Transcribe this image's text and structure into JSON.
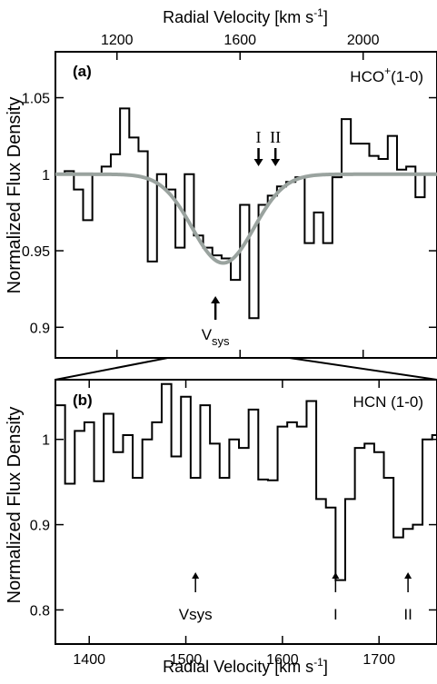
{
  "chart_data": [
    {
      "type": "line",
      "panel_label": "(a)",
      "annotation": "HCO",
      "annotation_sup": "+",
      "annotation_suffix": "(1-0)",
      "xlabel": "Radial Velocity [km s",
      "xlabel_sup": "-1",
      "xlabel_end": "]",
      "ylabel": "Normalized Flux Density",
      "xticks": [
        "1200",
        "1600",
        "2000"
      ],
      "yticks": [
        "0.9",
        "0.95",
        "1",
        "1.05"
      ],
      "xlim": [
        1000,
        2240
      ],
      "ylim": [
        0.88,
        1.08
      ],
      "x_axis_position": "top",
      "series": [
        {
          "style": "step",
          "color": "#000000",
          "x": [
            1000,
            1030,
            1060,
            1090,
            1120,
            1150,
            1180,
            1210,
            1240,
            1270,
            1300,
            1330,
            1360,
            1390,
            1420,
            1450,
            1480,
            1510,
            1540,
            1570,
            1600,
            1630,
            1660,
            1690,
            1720,
            1750,
            1780,
            1810,
            1840,
            1870,
            1900,
            1930,
            1960,
            1990,
            2020,
            2050,
            2080,
            2110,
            2140,
            2170,
            2200,
            2230
          ],
          "y": [
            1.0,
            1.002,
            0.99,
            0.97,
            1.0,
            1.005,
            1.013,
            1.043,
            1.024,
            1.015,
            0.943,
            1.0,
            0.99,
            0.952,
            1.0,
            0.96,
            0.952,
            0.947,
            0.945,
            0.931,
            0.98,
            0.906,
            0.98,
            0.986,
            0.992,
            0.995,
            0.998,
            0.955,
            0.975,
            0.955,
            0.998,
            1.036,
            1.02,
            1.02,
            1.012,
            1.01,
            1.025,
            1.003,
            1.005,
            0.985,
            1.0,
            1.0
          ]
        },
        {
          "style": "gaussian",
          "color": "#9aa39f",
          "baseline": 1.0,
          "depth": 0.058,
          "center": 1545,
          "sigma": 100
        }
      ],
      "arrows": [
        {
          "label": "I",
          "x": 1660,
          "direction": "down"
        },
        {
          "label": "II",
          "x": 1715,
          "direction": "down"
        },
        {
          "label": "V",
          "label_sub": "sys",
          "x": 1520,
          "direction": "up"
        }
      ]
    },
    {
      "type": "line",
      "panel_label": "(b)",
      "annotation": "HCN (1-0)",
      "xlabel": "Radial Velocity [km s",
      "xlabel_sup": "-1",
      "xlabel_end": "]",
      "ylabel": "Normalized Flux Density",
      "xticks": [
        "1400",
        "1500",
        "1600",
        "1700"
      ],
      "yticks": [
        "0.8",
        "0.9",
        "1"
      ],
      "xlim": [
        1365,
        1760
      ],
      "ylim": [
        0.76,
        1.07
      ],
      "x_axis_position": "bottom",
      "series": [
        {
          "style": "step",
          "color": "#000000",
          "x": [
            1365,
            1375,
            1385,
            1395,
            1405,
            1415,
            1425,
            1435,
            1445,
            1455,
            1465,
            1475,
            1485,
            1495,
            1505,
            1515,
            1525,
            1535,
            1545,
            1555,
            1565,
            1575,
            1585,
            1595,
            1605,
            1615,
            1625,
            1635,
            1645,
            1655,
            1665,
            1675,
            1685,
            1695,
            1705,
            1715,
            1725,
            1735,
            1745,
            1755
          ],
          "y": [
            1.04,
            0.948,
            1.01,
            1.02,
            0.951,
            1.03,
            0.985,
            1.005,
            0.955,
            1.0,
            1.02,
            1.065,
            0.98,
            1.05,
            0.955,
            1.04,
            0.995,
            0.955,
            1.0,
            0.99,
            1.035,
            0.953,
            0.952,
            1.015,
            1.02,
            1.015,
            1.045,
            0.93,
            0.92,
            0.835,
            0.93,
            0.99,
            0.995,
            0.985,
            0.955,
            0.885,
            0.895,
            0.9,
            1.0,
            1.005
          ]
        }
      ],
      "arrows": [
        {
          "label": "Vsys",
          "x": 1510,
          "direction": "up"
        },
        {
          "label": "I",
          "x": 1655,
          "direction": "up"
        },
        {
          "label": "II",
          "x": 1730,
          "direction": "up"
        }
      ]
    }
  ]
}
